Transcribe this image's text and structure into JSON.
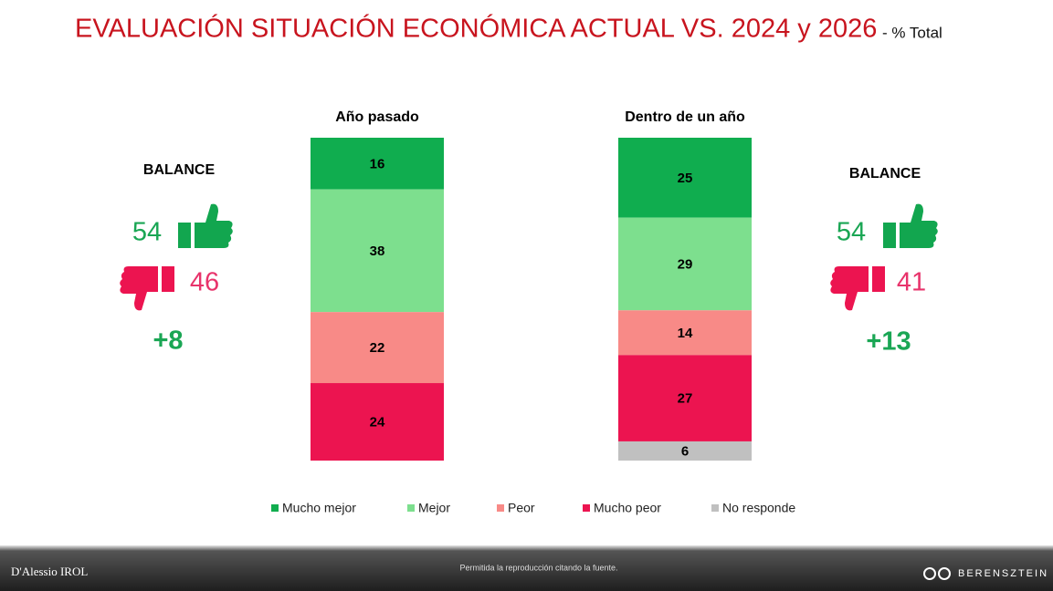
{
  "title": "EVALUACIÓN SITUACIÓN ECONÓMICA ACTUAL VS. 2024 y 2026",
  "subtitle": "- % Total",
  "chart_data": {
    "type": "bar",
    "stacked": true,
    "categories": [
      "Año pasado",
      "Dentro de un año"
    ],
    "series": [
      {
        "name": "Mucho mejor",
        "color": "#10ad4f",
        "values": [
          16,
          25
        ]
      },
      {
        "name": "Mejor",
        "color": "#7ddf8e",
        "values": [
          38,
          29
        ]
      },
      {
        "name": "Peor",
        "color": "#f88a87",
        "values": [
          22,
          14
        ]
      },
      {
        "name": "Mucho peor",
        "color": "#ec1450",
        "values": [
          24,
          27
        ]
      },
      {
        "name": "No responde",
        "color": "#c0c0c0",
        "values": [
          null,
          6
        ]
      }
    ]
  },
  "balance": [
    {
      "label": "BALANCE",
      "positive": 54,
      "negative": 46,
      "net": {
        "value": 8,
        "label": "+8"
      }
    },
    {
      "label": "BALANCE",
      "positive": 54,
      "negative": 41,
      "net": {
        "value": 13,
        "label": "+13"
      }
    }
  ],
  "footer": {
    "left": "D'Alessio IROL",
    "center": "Permitida la reproducción citando la fuente.",
    "right": "BERENSZTEIN"
  }
}
